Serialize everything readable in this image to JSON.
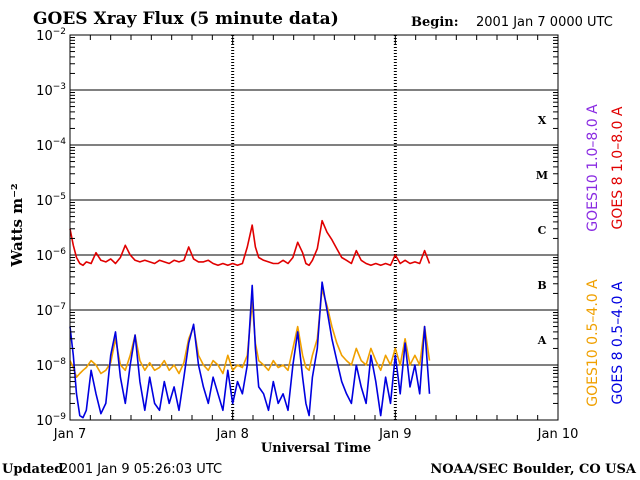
{
  "header": {
    "title": "GOES Xray Flux (5 minute data)",
    "begin_label": "Begin:",
    "begin_value": "2001 Jan 7 0000 UTC"
  },
  "footer": {
    "updated_label": "Updated",
    "updated_value": "2001 Jan  9 05:26:03 UTC",
    "credit": "NOAA/SEC Boulder, CO USA"
  },
  "colors": {
    "goes10_long": "#8a2be2",
    "goes8_long": "#e00000",
    "goes10_short": "#f0a000",
    "goes8_short": "#0000e0",
    "grid": "#000000"
  },
  "chart_data": {
    "type": "line",
    "title": "GOES Xray Flux (5 minute data)",
    "xlabel": "Universal Time",
    "ylabel": "Watts m⁻²",
    "y_scale": "log",
    "ylim": [
      1e-09,
      0.01
    ],
    "xlim": [
      0,
      3
    ],
    "x_unit": "days since 2001 Jan 7 0000 UTC",
    "x_ticks": [
      {
        "x": 0,
        "label": "Jan 7"
      },
      {
        "x": 1,
        "label": "Jan 8"
      },
      {
        "x": 2,
        "label": "Jan 9"
      },
      {
        "x": 3,
        "label": "Jan 10"
      }
    ],
    "y_ticks": [
      {
        "exp": -2,
        "base": "10",
        "sup": "−2"
      },
      {
        "exp": -3,
        "base": "10",
        "sup": "−3"
      },
      {
        "exp": -4,
        "base": "10",
        "sup": "−4"
      },
      {
        "exp": -5,
        "base": "10",
        "sup": "−5"
      },
      {
        "exp": -6,
        "base": "10",
        "sup": "−6"
      },
      {
        "exp": -7,
        "base": "10",
        "sup": "−7"
      },
      {
        "exp": -8,
        "base": "10",
        "sup": "−8"
      },
      {
        "exp": -9,
        "base": "10",
        "sup": "−9"
      }
    ],
    "flare_classes": [
      {
        "label": "X",
        "y": 0.0003
      },
      {
        "label": "M",
        "y": 3e-05
      },
      {
        "label": "C",
        "y": 3e-06
      },
      {
        "label": "B",
        "y": 3e-07
      },
      {
        "label": "A",
        "y": 3e-08
      }
    ],
    "grid": true,
    "series": [
      {
        "name": "GOES10 1.0–8.0 A",
        "color": "#8a2be2",
        "x": [],
        "y": []
      },
      {
        "name": "GOES 8 1.0–8.0 A",
        "color": "#e00000",
        "x": [
          0.0,
          0.02,
          0.04,
          0.06,
          0.08,
          0.1,
          0.13,
          0.16,
          0.19,
          0.22,
          0.25,
          0.28,
          0.31,
          0.34,
          0.37,
          0.4,
          0.43,
          0.46,
          0.49,
          0.52,
          0.55,
          0.58,
          0.61,
          0.64,
          0.67,
          0.7,
          0.73,
          0.76,
          0.79,
          0.82,
          0.85,
          0.88,
          0.91,
          0.94,
          0.97,
          1.0,
          1.03,
          1.06,
          1.09,
          1.12,
          1.14,
          1.16,
          1.19,
          1.22,
          1.25,
          1.28,
          1.31,
          1.34,
          1.37,
          1.4,
          1.43,
          1.45,
          1.47,
          1.49,
          1.52,
          1.55,
          1.58,
          1.61,
          1.64,
          1.67,
          1.7,
          1.73,
          1.76,
          1.79,
          1.82,
          1.85,
          1.88,
          1.91,
          1.94,
          1.97,
          2.0,
          2.03,
          2.06,
          2.09,
          2.12,
          2.15,
          2.18,
          2.21
        ],
        "y": [
          3e-06,
          1.5e-06,
          9e-07,
          7e-07,
          6.5e-07,
          7.5e-07,
          7e-07,
          1.1e-06,
          8e-07,
          7.5e-07,
          8.5e-07,
          7e-07,
          9e-07,
          1.5e-06,
          1e-06,
          8e-07,
          7.5e-07,
          8e-07,
          7.5e-07,
          7e-07,
          8e-07,
          7.5e-07,
          7e-07,
          8e-07,
          7.5e-07,
          8e-07,
          1.4e-06,
          8.5e-07,
          7.5e-07,
          7.5e-07,
          8e-07,
          7e-07,
          6.5e-07,
          7e-07,
          6.5e-07,
          7e-07,
          6.5e-07,
          7e-07,
          1.4e-06,
          3.5e-06,
          1.4e-06,
          9e-07,
          8e-07,
          7.5e-07,
          7e-07,
          7e-07,
          8e-07,
          7e-07,
          9e-07,
          1.7e-06,
          1.1e-06,
          7e-07,
          6.5e-07,
          8e-07,
          1.3e-06,
          4.2e-06,
          2.6e-06,
          1.9e-06,
          1.3e-06,
          9e-07,
          8e-07,
          7e-07,
          1.2e-06,
          8e-07,
          7e-07,
          6.5e-07,
          7e-07,
          6.5e-07,
          7e-07,
          6.5e-07,
          1e-06,
          7e-07,
          8e-07,
          7e-07,
          7.5e-07,
          7e-07,
          1.2e-06,
          7e-07
        ]
      },
      {
        "name": "GOES10 0.5–4.0 A",
        "color": "#f0a000",
        "x": [
          0.0,
          0.02,
          0.04,
          0.06,
          0.08,
          0.1,
          0.13,
          0.16,
          0.19,
          0.22,
          0.25,
          0.28,
          0.31,
          0.34,
          0.37,
          0.4,
          0.43,
          0.46,
          0.49,
          0.52,
          0.55,
          0.58,
          0.61,
          0.64,
          0.67,
          0.7,
          0.73,
          0.76,
          0.79,
          0.82,
          0.85,
          0.88,
          0.91,
          0.94,
          0.97,
          1.0,
          1.03,
          1.06,
          1.09,
          1.12,
          1.14,
          1.16,
          1.19,
          1.22,
          1.25,
          1.28,
          1.31,
          1.34,
          1.37,
          1.4,
          1.43,
          1.45,
          1.47,
          1.49,
          1.52,
          1.55,
          1.58,
          1.61,
          1.64,
          1.67,
          1.7,
          1.73,
          1.76,
          1.79,
          1.82,
          1.85,
          1.88,
          1.91,
          1.94,
          1.97,
          2.0,
          2.03,
          2.06,
          2.09,
          2.12,
          2.15,
          2.18,
          2.21
        ],
        "y": [
          1.2e-08,
          9e-09,
          6e-09,
          7e-09,
          8e-09,
          9e-09,
          1.2e-08,
          1e-08,
          7e-09,
          8e-09,
          1.1e-08,
          3e-08,
          1e-08,
          8e-09,
          1.5e-08,
          3.5e-08,
          1.2e-08,
          8e-09,
          1.1e-08,
          8e-09,
          9e-09,
          1.2e-08,
          8e-09,
          1e-08,
          7e-09,
          1.1e-08,
          3e-08,
          5e-08,
          1.5e-08,
          1e-08,
          8e-09,
          1.2e-08,
          1e-08,
          7e-09,
          1.5e-08,
          8e-09,
          1e-08,
          9e-09,
          1.5e-08,
          1.4e-07,
          2.5e-08,
          1.2e-08,
          1e-08,
          8e-09,
          1.2e-08,
          9e-09,
          1e-08,
          8e-09,
          2e-08,
          5e-08,
          1.5e-08,
          9e-09,
          8e-09,
          1.5e-08,
          3e-08,
          2.4e-07,
          1.2e-07,
          5e-08,
          2.5e-08,
          1.5e-08,
          1.2e-08,
          1e-08,
          2e-08,
          1.2e-08,
          1e-08,
          2e-08,
          1.2e-08,
          8e-09,
          1.5e-08,
          1e-08,
          2e-08,
          1e-08,
          3e-08,
          1e-08,
          1.5e-08,
          1e-08,
          5e-08,
          1.2e-08
        ]
      },
      {
        "name": "GOES 8 0.5–4.0 A",
        "color": "#0000e0",
        "x": [
          0.0,
          0.02,
          0.04,
          0.06,
          0.08,
          0.1,
          0.13,
          0.16,
          0.19,
          0.22,
          0.25,
          0.28,
          0.31,
          0.34,
          0.37,
          0.4,
          0.43,
          0.46,
          0.49,
          0.52,
          0.55,
          0.58,
          0.61,
          0.64,
          0.67,
          0.7,
          0.73,
          0.76,
          0.79,
          0.82,
          0.85,
          0.88,
          0.91,
          0.94,
          0.97,
          1.0,
          1.03,
          1.06,
          1.09,
          1.12,
          1.14,
          1.16,
          1.19,
          1.22,
          1.25,
          1.28,
          1.31,
          1.34,
          1.37,
          1.4,
          1.43,
          1.45,
          1.47,
          1.49,
          1.52,
          1.55,
          1.58,
          1.61,
          1.64,
          1.67,
          1.7,
          1.73,
          1.76,
          1.79,
          1.82,
          1.85,
          1.88,
          1.91,
          1.94,
          1.97,
          2.0,
          2.03,
          2.06,
          2.09,
          2.12,
          2.15,
          2.18,
          2.21
        ],
        "y": [
          5e-08,
          1.5e-08,
          3e-09,
          1.2e-09,
          1.1e-09,
          1.5e-09,
          8e-09,
          3e-09,
          1.3e-09,
          2e-09,
          1.5e-08,
          4e-08,
          6e-09,
          2e-09,
          1e-08,
          3.5e-08,
          5e-09,
          1.5e-09,
          6e-09,
          2e-09,
          1.5e-09,
          5e-09,
          2e-09,
          4e-09,
          1.5e-09,
          6e-09,
          2.5e-08,
          5.5e-08,
          1e-08,
          4e-09,
          2e-09,
          6e-09,
          3e-09,
          1.5e-09,
          8e-09,
          2e-09,
          5e-09,
          3e-09,
          1e-08,
          2.8e-07,
          2e-08,
          4e-09,
          3e-09,
          1.5e-09,
          5e-09,
          2e-09,
          3e-09,
          1.5e-09,
          1e-08,
          4e-08,
          6e-09,
          2e-09,
          1.2e-09,
          6e-09,
          2e-08,
          3.2e-07,
          1e-07,
          3e-08,
          1.2e-08,
          5e-09,
          3e-09,
          2e-09,
          1e-08,
          4e-09,
          2e-09,
          1.5e-08,
          5e-09,
          1.2e-09,
          6e-09,
          2e-09,
          1.5e-08,
          3e-09,
          2.5e-08,
          4e-09,
          1e-08,
          3e-09,
          5e-08,
          3e-09
        ]
      }
    ]
  }
}
